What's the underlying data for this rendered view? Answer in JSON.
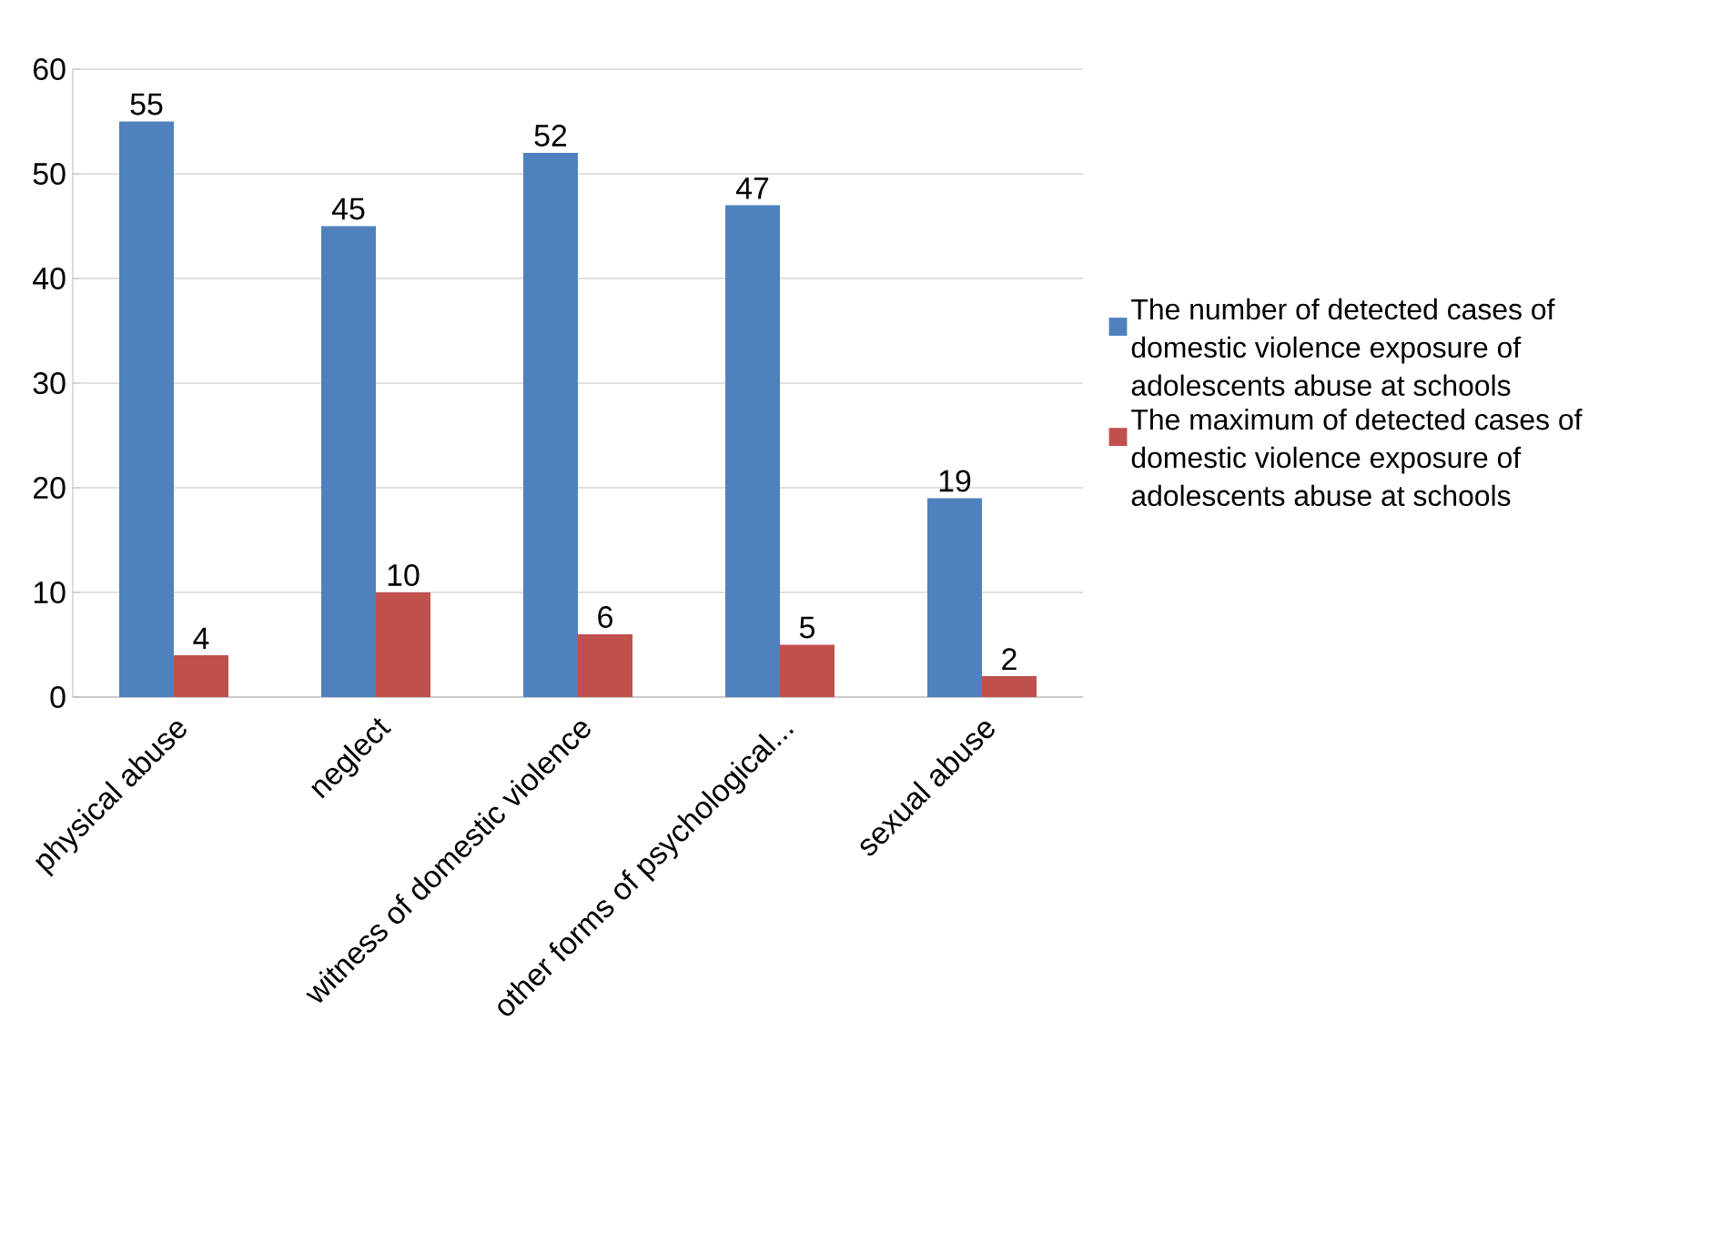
{
  "chart_data": {
    "type": "bar",
    "categories": [
      "physical abuse",
      "neglect",
      "witness of domestic violence",
      "other forms of psychological...",
      "sexual abuse"
    ],
    "series": [
      {
        "name": "The number of detected cases of domestic violence exposure of adolescents abuse at schools",
        "color": "#4f81bd",
        "values": [
          55,
          45,
          52,
          47,
          19
        ]
      },
      {
        "name": "The maximum of detected cases of domestic violence exposure of adolescents abuse at schools",
        "color": "#c0504d",
        "values": [
          4,
          10,
          6,
          5,
          2
        ]
      }
    ],
    "ylim": [
      0,
      60
    ],
    "yticks": [
      0,
      10,
      20,
      30,
      40,
      50,
      60
    ],
    "grid": "y",
    "legend": "right",
    "data_labels": true
  }
}
